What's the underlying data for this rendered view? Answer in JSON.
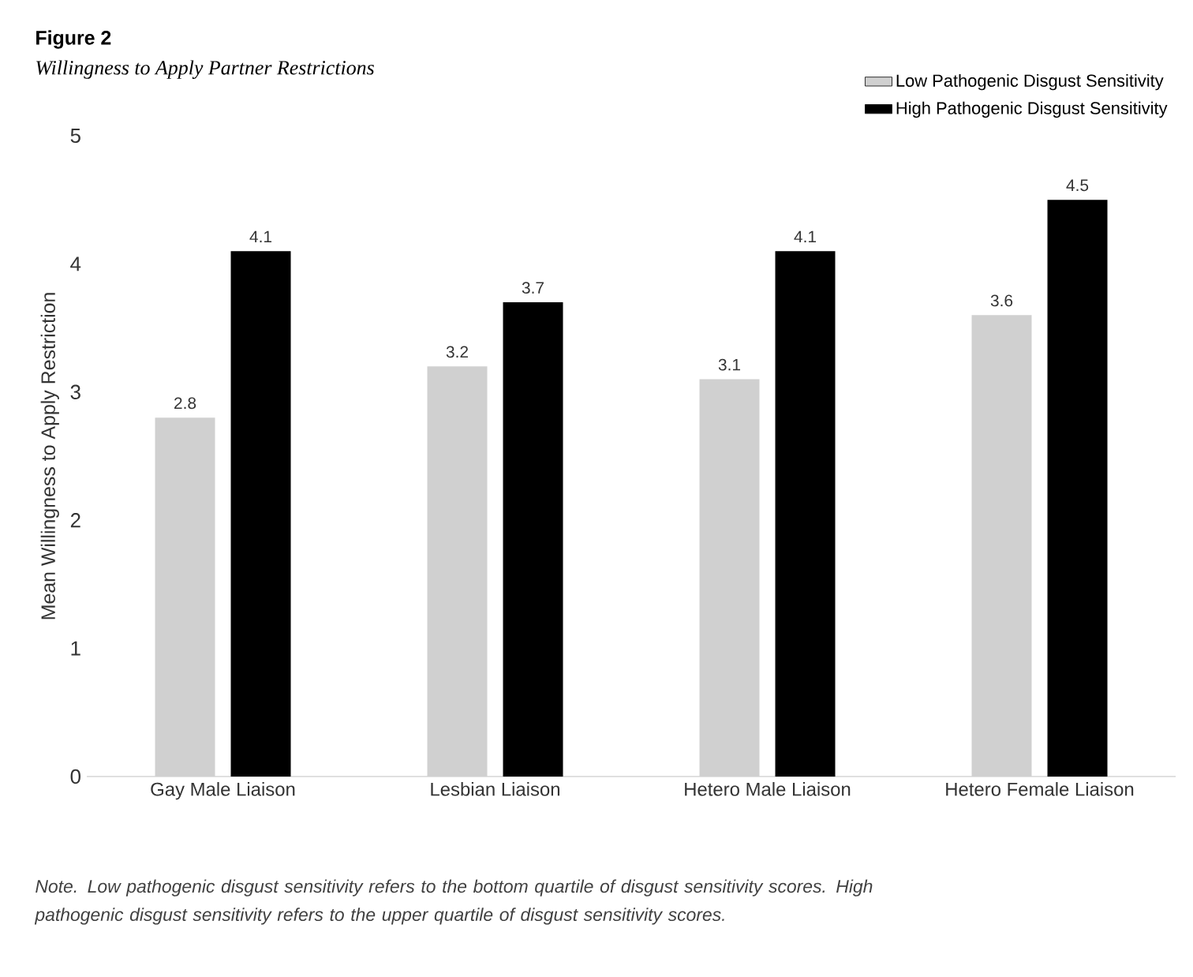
{
  "chart_data": {
    "type": "bar",
    "title": "Figure 2",
    "subtitle": "Willingness to Apply Partner Restrictions",
    "ylabel": "Mean Willingness to Apply Restriction",
    "categories": [
      "Gay Male Liaison",
      "Lesbian Liaison",
      "Hetero Male Liaison",
      "Hetero Female Liaison"
    ],
    "series": [
      {
        "name": "Low Pathogenic Disgust Sensitivity",
        "color": "#d0d0d0",
        "values": [
          2.8,
          3.2,
          3.1,
          3.6
        ]
      },
      {
        "name": "High Pathogenic Disgust Sensitivity",
        "color": "#000000",
        "values": [
          4.1,
          3.7,
          4.1,
          4.5
        ]
      }
    ],
    "ylim": [
      0,
      5
    ],
    "yticks": [
      0,
      1,
      2,
      3,
      4,
      5
    ],
    "data_labels": true,
    "legend": "top right",
    "annotations": [
      "Note. Low pathogenic disgust sensitivity refers to the bottom quartile of disgust sensitivity scores. High pathogenic disgust sensitivity refers to the upper quartile of disgust sensitivity scores."
    ]
  }
}
